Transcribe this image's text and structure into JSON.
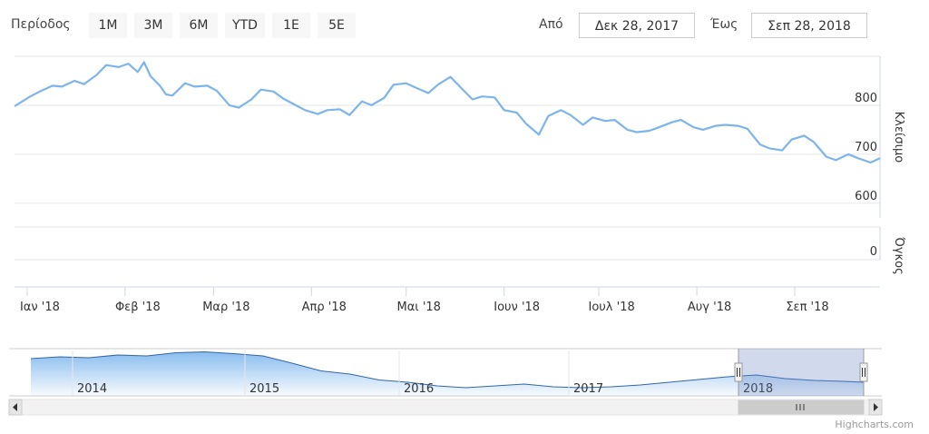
{
  "range_selector": {
    "label": "Περίοδος",
    "buttons": [
      "1M",
      "3M",
      "6M",
      "YTD",
      "1E",
      "5E"
    ],
    "from_label": "Από",
    "from_value": "Δεκ 28, 2017",
    "to_label": "Έως",
    "to_value": "Σεπ 28, 2018"
  },
  "colors": {
    "series": "#7cb5ec",
    "grid": "#e6e6e6",
    "axis": "#ccd6eb",
    "navigator_mask": "rgba(102,133,194,0.3)"
  },
  "credits": "Highcharts.com",
  "chart_data": {
    "type": "line",
    "ylabel": "Κλείσιμο",
    "volume_label": "Όγκος",
    "yticks": [
      600,
      700,
      800
    ],
    "ylim": [
      570,
      900
    ],
    "volume_ticks": [
      0
    ],
    "x_ticks": [
      "Ιαν '18",
      "Φεβ '18",
      "Μαρ '18",
      "Απρ '18",
      "Μαι '18",
      "Ιουν '18",
      "Ιουλ '18",
      "Αυγ '18",
      "Σεπ '18"
    ],
    "x_range": [
      "2017-12-28",
      "2018-09-28"
    ],
    "series": [
      {
        "x": [
          "2017-12-28",
          "2018-01-02",
          "2018-01-05",
          "2018-01-09",
          "2018-01-12",
          "2018-01-16",
          "2018-01-19",
          "2018-01-23",
          "2018-01-26",
          "2018-01-30",
          "2018-02-02",
          "2018-02-05",
          "2018-02-07",
          "2018-02-09",
          "2018-02-12",
          "2018-02-14",
          "2018-02-16",
          "2018-02-20",
          "2018-02-23",
          "2018-02-27",
          "2018-03-02",
          "2018-03-06",
          "2018-03-09",
          "2018-03-13",
          "2018-03-16",
          "2018-03-20",
          "2018-03-23",
          "2018-03-27",
          "2018-03-30",
          "2018-04-03",
          "2018-04-06",
          "2018-04-10",
          "2018-04-13",
          "2018-04-17",
          "2018-04-20",
          "2018-04-24",
          "2018-04-27",
          "2018-05-01",
          "2018-05-04",
          "2018-05-08",
          "2018-05-11",
          "2018-05-15",
          "2018-05-18",
          "2018-05-22",
          "2018-05-25",
          "2018-05-29",
          "2018-06-01",
          "2018-06-05",
          "2018-06-08",
          "2018-06-12",
          "2018-06-15",
          "2018-06-19",
          "2018-06-22",
          "2018-06-26",
          "2018-06-29",
          "2018-07-03",
          "2018-07-06",
          "2018-07-10",
          "2018-07-13",
          "2018-07-17",
          "2018-07-20",
          "2018-07-24",
          "2018-07-27",
          "2018-07-31",
          "2018-08-03",
          "2018-08-07",
          "2018-08-10",
          "2018-08-14",
          "2018-08-17",
          "2018-08-21",
          "2018-08-24",
          "2018-08-28",
          "2018-08-31",
          "2018-09-04",
          "2018-09-07",
          "2018-09-11",
          "2018-09-14",
          "2018-09-18",
          "2018-09-21",
          "2018-09-25",
          "2018-09-28"
        ],
        "y": [
          798,
          818,
          828,
          840,
          838,
          850,
          843,
          862,
          882,
          878,
          885,
          868,
          888,
          860,
          840,
          822,
          820,
          845,
          838,
          840,
          830,
          800,
          795,
          812,
          832,
          828,
          814,
          800,
          790,
          782,
          790,
          792,
          780,
          808,
          800,
          815,
          842,
          845,
          836,
          825,
          842,
          858,
          838,
          812,
          818,
          816,
          790,
          785,
          762,
          740,
          778,
          790,
          780,
          760,
          775,
          768,
          770,
          750,
          745,
          748,
          755,
          765,
          770,
          755,
          750,
          758,
          760,
          758,
          752,
          720,
          712,
          708,
          730,
          738,
          725,
          695,
          688,
          700,
          692,
          683,
          692
        ]
      }
    ],
    "navigator": {
      "years": [
        "2014",
        "2015",
        "2016",
        "2017",
        "2018"
      ],
      "x": [
        2013.0,
        2013.2,
        2013.4,
        2013.6,
        2013.8,
        2014.0,
        2014.2,
        2014.4,
        2014.6,
        2014.8,
        2015.0,
        2015.2,
        2015.4,
        2015.6,
        2015.8,
        2016.0,
        2016.2,
        2016.4,
        2016.6,
        2016.8,
        2017.0,
        2017.2,
        2017.4,
        2017.6,
        2017.8,
        2018.0,
        2018.2,
        2018.4,
        2018.6,
        2018.74
      ],
      "y": [
        0.82,
        0.86,
        0.84,
        0.9,
        0.88,
        0.95,
        0.97,
        0.93,
        0.88,
        0.72,
        0.55,
        0.48,
        0.35,
        0.3,
        0.22,
        0.18,
        0.22,
        0.26,
        0.2,
        0.18,
        0.2,
        0.24,
        0.3,
        0.36,
        0.42,
        0.46,
        0.38,
        0.34,
        0.32,
        0.3
      ],
      "selected_range": [
        "2017-12-28",
        "2018-09-28"
      ]
    }
  }
}
